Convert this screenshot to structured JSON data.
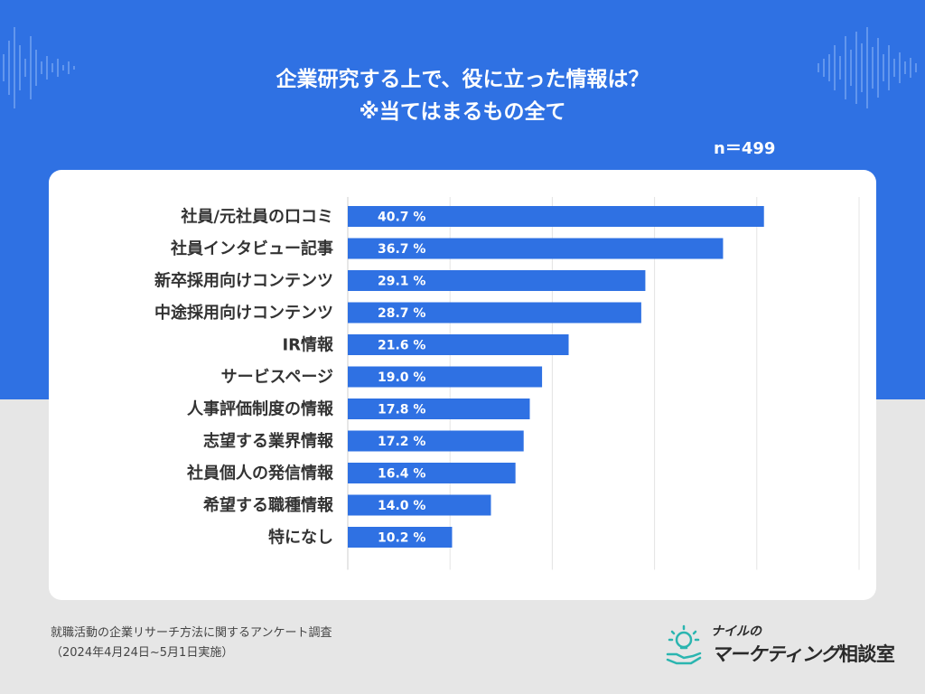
{
  "header": {
    "title_line1": "企業研究する上で、役に立った情報は？",
    "title_line2": "※当てはまるもの全て",
    "sample_size": "n＝499"
  },
  "colors": {
    "accent": "#2f71e3",
    "bar": "#2f71e3",
    "label": "#333333",
    "bar_text": "#ffffff",
    "logo_teal": "#2bb5b0"
  },
  "chart_data": {
    "type": "bar",
    "orientation": "horizontal",
    "categories": [
      "社員/元社員の口コミ",
      "社員インタビュー記事",
      "新卒採用向けコンテンツ",
      "中途採用向けコンテンツ",
      "IR情報",
      "サービスページ",
      "人事評価制度の情報",
      "志望する業界情報",
      "社員個人の発信情報",
      "希望する職種情報",
      "特になし"
    ],
    "values": [
      40.7,
      36.7,
      29.1,
      28.7,
      21.6,
      19.0,
      17.8,
      17.2,
      16.4,
      14.0,
      10.2
    ],
    "value_labels": [
      "40.7 %",
      "36.7 %",
      "29.1 %",
      "28.7 %",
      "21.6 %",
      "19.0 %",
      "17.8 %",
      "17.2 %",
      "16.4 %",
      "14.0 %",
      "10.2 %"
    ],
    "xlim": [
      0,
      50
    ],
    "grid": true,
    "title": "企業研究する上で、役に立った情報は？ ※当てはまるもの全て",
    "xlabel": "",
    "ylabel": ""
  },
  "footer": {
    "source": "就職活動の企業リサーチ方法に関するアンケート調査",
    "period": "（2024年4月24日~5月1日実施）"
  },
  "logo": {
    "small": "ナイルの",
    "big_kana": "マーケティング",
    "big_kanji": "相談室"
  }
}
